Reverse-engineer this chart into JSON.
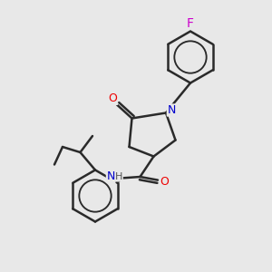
{
  "background_color": "#e8e8e8",
  "bond_color": "#2a2a2a",
  "bond_width": 1.8,
  "atom_colors": {
    "O": "#ee0000",
    "N": "#0000cc",
    "F": "#cc00cc",
    "C": "#2a2a2a",
    "H": "#555555"
  },
  "font_size": 9,
  "figsize": [
    3.0,
    3.0
  ],
  "dpi": 100
}
